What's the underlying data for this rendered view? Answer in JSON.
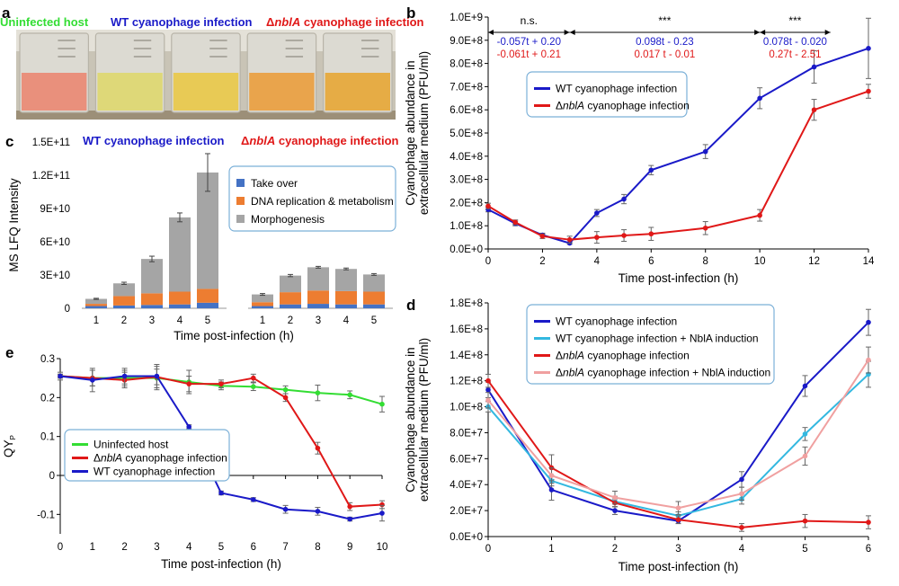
{
  "colors": {
    "wt": "#1a1ac8",
    "delta": "#e01818",
    "uninfected": "#33dd33",
    "wt_induction": "#33b8e0",
    "delta_induction": "#f0a0a0",
    "takeover": "#4472c4",
    "dna": "#ed7d31",
    "morph": "#a5a5a5",
    "legend_border": "#7bb0d8"
  },
  "panel_a": {
    "letter": "a",
    "label_uninfected": "Uninfected host",
    "label_wt": "WT cyanophage infection",
    "label_delta_prefix": "Δ",
    "label_delta_gene": "nblA",
    "label_delta_suffix": " cyanophage infection",
    "flask_colors": [
      "#e98a74",
      "#ddd870",
      "#e8c94a",
      "#e9a040",
      "#e6a838"
    ],
    "image_description": "photo of cyanobacterial culture flasks"
  },
  "chart_data": [
    {
      "panel": "b",
      "type": "line",
      "xlabel": "Time post-infection (h)",
      "ylabel": [
        "Cyanophage abundance in",
        "extracellular medium (PFU/ml)"
      ],
      "xlim": [
        0,
        14
      ],
      "ylim": [
        0,
        1000000000
      ],
      "xticks": [
        0,
        2,
        4,
        6,
        8,
        10,
        12,
        14
      ],
      "yticks": [
        0,
        100000000,
        200000000,
        300000000,
        400000000,
        500000000,
        600000000,
        700000000,
        800000000,
        900000000,
        1000000000
      ],
      "ytick_labels": [
        "0.0E+0",
        "1.0E+8",
        "2.0E+8",
        "3.0E+8",
        "4.0E+8",
        "5.0E+8",
        "6.0E+8",
        "7.0E+8",
        "8.0E+8",
        "9.0E+8",
        "1.0E+9"
      ],
      "series": [
        {
          "name": "WT cyanophage infection",
          "color_key": "wt",
          "x": [
            0,
            1,
            2,
            3,
            4,
            5,
            6,
            8,
            10,
            12,
            14
          ],
          "y": [
            170000000,
            110000000,
            60000000,
            25000000,
            155000000,
            215000000,
            340000000,
            420000000,
            650000000,
            785000000,
            865000000
          ],
          "err": [
            10000000,
            10000000,
            8000000,
            5000000,
            15000000,
            20000000,
            20000000,
            30000000,
            45000000,
            70000000,
            130000000
          ]
        },
        {
          "name": "ΔnblA cyanophage infection",
          "color_key": "delta",
          "italic_part": "nblA",
          "x": [
            0,
            1,
            2,
            3,
            4,
            5,
            6,
            8,
            10,
            12,
            14
          ],
          "y": [
            185000000,
            115000000,
            55000000,
            40000000,
            50000000,
            58000000,
            65000000,
            90000000,
            145000000,
            600000000,
            680000000
          ],
          "err": [
            12000000,
            10000000,
            10000000,
            15000000,
            25000000,
            25000000,
            28000000,
            28000000,
            25000000,
            45000000,
            30000000
          ]
        }
      ],
      "annotations": {
        "segments": [
          {
            "x0": 0,
            "x1": 3,
            "sig": "n.s.",
            "wt_eq": "-0.057t + 0.20",
            "delta_eq": "-0.061t + 0.21"
          },
          {
            "x0": 3,
            "x1": 10,
            "sig": "***",
            "wt_eq": "0.098t - 0.23",
            "delta_eq": "0.017 t - 0.01"
          },
          {
            "x0": 10,
            "x1": 12.6,
            "sig": "***",
            "wt_eq": "0.078t - 0.020",
            "delta_eq": "0.27t - 2.51"
          }
        ]
      }
    },
    {
      "panel": "c",
      "type": "bar",
      "stacked": true,
      "ylabel": "MS LFQ Intensity",
      "xlabel": "Time post-infection (h)",
      "ylim": [
        0,
        150000000000
      ],
      "yticks": [
        0,
        30000000000,
        60000000000,
        90000000000,
        120000000000,
        150000000000
      ],
      "ytick_labels": [
        "0",
        "3E+10",
        "6E+10",
        "9E+10",
        "1.2E+11",
        "1.5E+11"
      ],
      "groups": [
        {
          "title": "WT cyanophage infection",
          "color_key": "wt",
          "categories": [
            "1",
            "2",
            "3",
            "4",
            "5"
          ],
          "series": [
            {
              "name": "Take over",
              "values": [
                2000000000,
                2500000000,
                3000000000,
                3500000000,
                5000000000
              ]
            },
            {
              "name": "DNA replication & metabolism",
              "values": [
                2000000000,
                8500000000,
                10500000000,
                11500000000,
                12500000000
              ]
            },
            {
              "name": "Morphogenesis",
              "values": [
                4500000000,
                11500000000,
                31000000000,
                67000000000,
                105000000000
              ]
            }
          ],
          "err": [
            500000000,
            1000000000,
            2500000000,
            4000000000,
            17000000000
          ]
        },
        {
          "title_prefix": "Δ",
          "title_gene": "nblA",
          "title_suffix": " cyanophage infection",
          "color_key": "delta",
          "categories": [
            "1",
            "2",
            "3",
            "4",
            "5"
          ],
          "series": [
            {
              "name": "Take over",
              "values": [
                2000000000,
                3500000000,
                4000000000,
                3500000000,
                3500000000
              ]
            },
            {
              "name": "DNA replication & metabolism",
              "values": [
                3500000000,
                11000000000,
                12000000000,
                12000000000,
                11500000000
              ]
            },
            {
              "name": "Morphogenesis",
              "values": [
                7000000000,
                15000000000,
                21000000000,
                20000000000,
                15500000000
              ]
            }
          ],
          "err": [
            800000000,
            1000000000,
            800000000,
            800000000,
            800000000
          ]
        }
      ],
      "legend": [
        "Take over",
        "DNA replication & metabolism",
        "Morphogenesis"
      ]
    },
    {
      "panel": "d",
      "type": "line",
      "xlabel": "Time post-infection (h)",
      "ylabel": [
        "Cyanophage abundance in",
        "extracellular medium (PFU/ml)"
      ],
      "xlim": [
        0,
        6
      ],
      "ylim": [
        0,
        180000000
      ],
      "xticks": [
        0,
        1,
        2,
        3,
        4,
        5,
        6
      ],
      "yticks": [
        0,
        20000000,
        40000000,
        60000000,
        80000000,
        100000000,
        120000000,
        140000000,
        160000000,
        180000000
      ],
      "ytick_labels": [
        "0.0E+0",
        "2.0E+7",
        "4.0E+7",
        "6.0E+7",
        "8.0E+7",
        "1.0E+8",
        "1.2E+8",
        "1.4E+8",
        "1.6E+8",
        "1.8E+8"
      ],
      "series": [
        {
          "name": "WT cyanophage infection",
          "color_key": "wt",
          "x": [
            0,
            1,
            2,
            3,
            4,
            5,
            6
          ],
          "y": [
            113000000,
            36000000,
            20000000,
            12000000,
            44000000,
            116000000,
            165000000
          ],
          "err": [
            6000000,
            8000000,
            3000000,
            2000000,
            6000000,
            8000000,
            10000000
          ]
        },
        {
          "name": "WT cyanophage infection + NblA induction",
          "color_key": "wt_induction",
          "x": [
            0,
            1,
            2,
            3,
            4,
            5,
            6
          ],
          "y": [
            100000000,
            43000000,
            27000000,
            16000000,
            29000000,
            79000000,
            125000000
          ],
          "err": [
            4000000,
            4000000,
            4000000,
            3000000,
            4000000,
            5000000,
            10000000
          ]
        },
        {
          "name": "ΔnblA cyanophage infection",
          "color_key": "delta",
          "italic_part": "nblA",
          "x": [
            0,
            1,
            2,
            3,
            4,
            5,
            6
          ],
          "y": [
            120000000,
            53000000,
            26000000,
            13000000,
            7000000,
            12000000,
            11000000
          ],
          "err": [
            5000000,
            10000000,
            3000000,
            3000000,
            3000000,
            5000000,
            5000000
          ]
        },
        {
          "name": "ΔnblA cyanophage infection + NblA induction",
          "color_key": "delta_induction",
          "italic_part": "nblA",
          "x": [
            0,
            1,
            2,
            3,
            4,
            5,
            6
          ],
          "y": [
            105000000,
            47000000,
            30000000,
            22000000,
            33000000,
            62000000,
            136000000
          ],
          "err": [
            6000000,
            6000000,
            5000000,
            5000000,
            5000000,
            7000000,
            10000000
          ]
        }
      ]
    },
    {
      "panel": "e",
      "type": "line",
      "xlabel": "Time post-infection (h)",
      "ylabel": "QY",
      "ylabel_sub": "P",
      "xlim": [
        0,
        10
      ],
      "ylim": [
        -0.15,
        0.3
      ],
      "xticks": [
        0,
        1,
        2,
        3,
        4,
        5,
        6,
        7,
        8,
        9,
        10
      ],
      "yticks": [
        -0.1,
        0,
        0.1,
        0.2,
        0.3
      ],
      "ytick_labels": [
        "-0.1",
        "0",
        "0.1",
        "0.2",
        "0.3"
      ],
      "series": [
        {
          "name": "Uninfected host",
          "color_key": "uninfected",
          "x": [
            0,
            1,
            2,
            3,
            4,
            5,
            6,
            7,
            8,
            9,
            10
          ],
          "y": [
            0.255,
            0.25,
            0.25,
            0.25,
            0.24,
            0.23,
            0.228,
            0.22,
            0.212,
            0.207,
            0.183
          ],
          "err": [
            0.01,
            0.02,
            0.02,
            0.03,
            0.03,
            0.01,
            0.01,
            0.01,
            0.02,
            0.01,
            0.02
          ]
        },
        {
          "name": "ΔnblA cyanophage infection",
          "color_key": "delta",
          "italic_part": "nblA",
          "x": [
            0,
            1,
            2,
            3,
            4,
            5,
            6,
            7,
            8,
            9,
            10
          ],
          "y": [
            0.255,
            0.25,
            0.245,
            0.253,
            0.235,
            0.235,
            0.25,
            0.2,
            0.07,
            -0.08,
            -0.075
          ],
          "err": [
            0.005,
            0.02,
            0.02,
            0.02,
            0.02,
            0.01,
            0.01,
            0.01,
            0.015,
            0.01,
            0.01
          ]
        },
        {
          "name": "WT cyanophage infection",
          "color_key": "wt",
          "x": [
            0,
            1,
            2,
            3,
            4,
            5,
            6,
            7,
            8,
            9,
            10
          ],
          "y": [
            0.255,
            0.245,
            0.255,
            0.255,
            0.125,
            -0.045,
            -0.062,
            -0.087,
            -0.092,
            -0.112,
            -0.097
          ],
          "err": [
            0.005,
            0.03,
            0.02,
            0.03,
            0.005,
            0.005,
            0.005,
            0.01,
            0.01,
            0.005,
            0.02
          ]
        }
      ]
    }
  ]
}
